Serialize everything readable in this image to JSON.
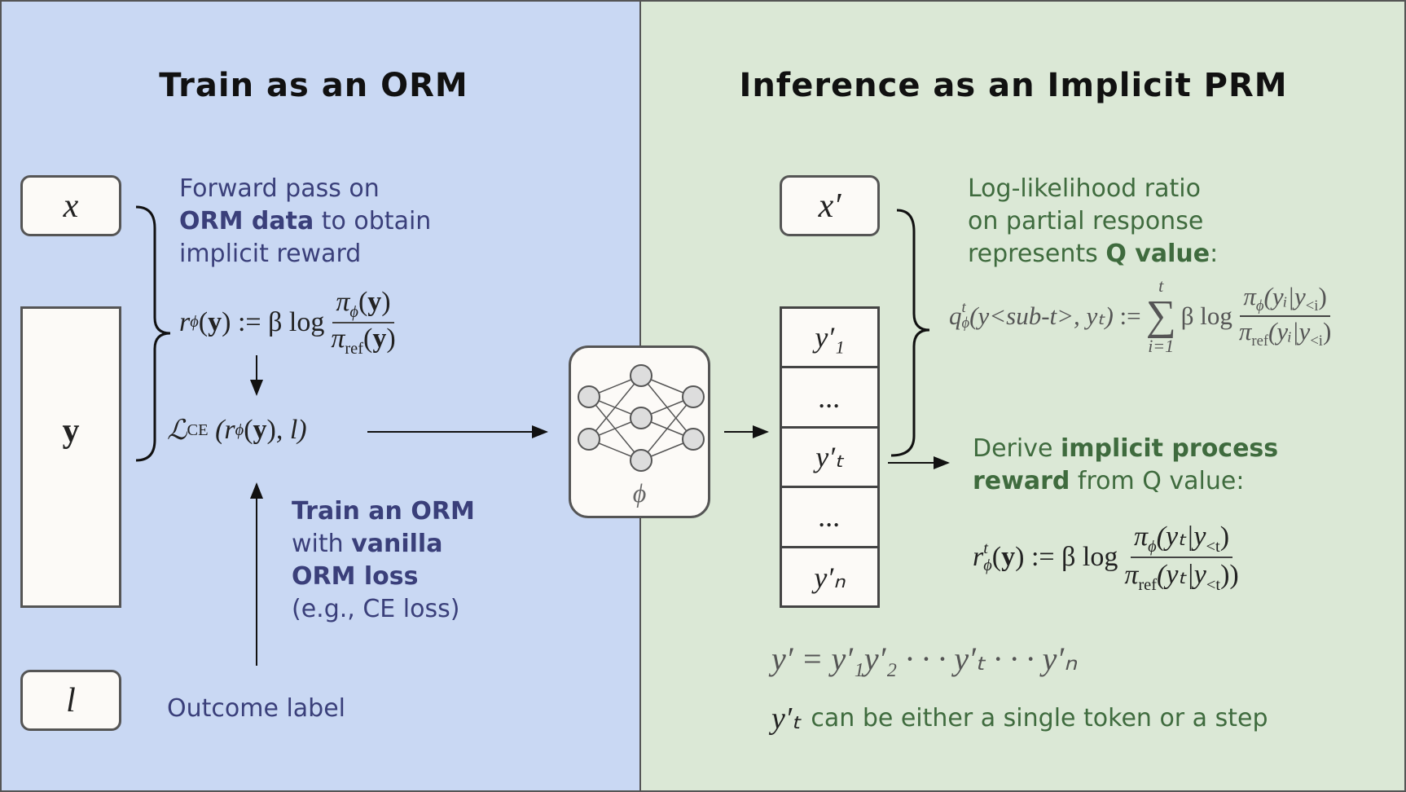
{
  "left": {
    "title": "Train as an ORM",
    "box_x": "x",
    "box_y": "y",
    "box_l": "l",
    "forward_text": {
      "line1": "Forward pass on",
      "line2_bold": "ORM data",
      "line2_rest": " to obtain",
      "line3": "implicit reward"
    },
    "reward_formula": {
      "lhs": "r",
      "lhs_sub": "ϕ",
      "arg": "y",
      "assign": ":= β log",
      "num": "π",
      "num_sub": "ϕ",
      "den": "π",
      "den_sub": "ref"
    },
    "loss_formula": {
      "L": "ℒ",
      "sub": "CE",
      "body_open": "(r",
      "body_sub": "ϕ",
      "body_arg": "y",
      "body_close": ", l)"
    },
    "train_text": {
      "line1_bold": "Train an ORM",
      "line2_pre": "with ",
      "line2_bold": "vanilla",
      "line3_bold": "ORM loss",
      "line4": "(e.g.,  CE loss)"
    },
    "outcome_label": "Outcome label"
  },
  "network": {
    "symbol": "ϕ"
  },
  "right": {
    "title": "Inference as an Implicit PRM",
    "box_x": "x′",
    "tokens": [
      "y′₁",
      "...",
      "y′ₜ",
      "...",
      "y′ₙ"
    ],
    "loglik_text": {
      "line1": "Log-likelihood ratio",
      "line2": "on partial response",
      "line3_pre": "represents ",
      "line3_bold": "Q value",
      "line3_post": ":"
    },
    "q_formula": {
      "lhs": "q",
      "lhs_sup": "t",
      "lhs_sub": "ϕ",
      "args": "(y<sub-t>, yₜ)",
      "assign": ":=",
      "sum_top": "t",
      "sum": "∑",
      "sum_bottom": "i=1",
      "blog": "β log",
      "num": "π",
      "num_sub": "ϕ",
      "num_arg": "(yᵢ|y",
      "num_arg_sub": "<i",
      "den": "π",
      "den_sub": "ref",
      "den_arg": "(yᵢ|y",
      "den_arg_sub": "<i"
    },
    "derive_text": {
      "line1_pre": "Derive ",
      "line1_bold": "implicit process",
      "line2_bold": "reward",
      "line2_post": " from Q value:"
    },
    "r_formula": {
      "lhs": "r",
      "lhs_sup": "t",
      "lhs_sub": "ϕ",
      "arg": "y",
      "assign": ":= β log",
      "num": "π",
      "num_sub": "ϕ",
      "num_arg": "(yₜ|y",
      "num_arg_sub": "<t",
      "den": "π",
      "den_sub": "ref",
      "den_arg": "(yₜ|y",
      "den_arg_sub": "<t",
      "den_close": "))"
    },
    "seq_formula": "y′ = y′₁y′₂ · · · y′ₜ · · · y′ₙ",
    "note_symbol": "y′ₜ",
    "note_text": "can be either a single token or a step"
  },
  "colors": {
    "left_bg": "#c9d8f3",
    "right_bg": "#dbe8d6",
    "blue_text": "#3a3f7a",
    "green_text": "#3f6b3e"
  }
}
